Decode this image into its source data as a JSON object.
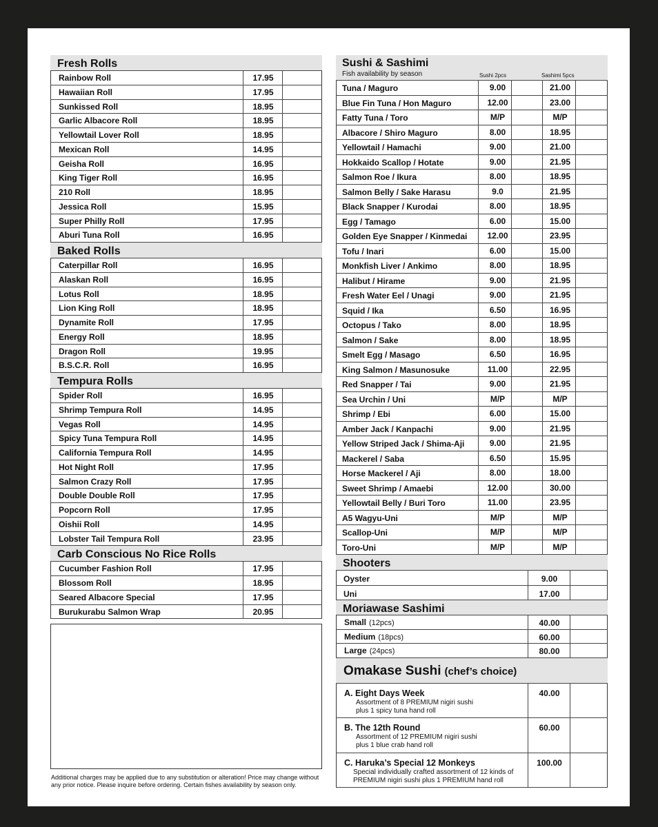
{
  "left": {
    "sections": [
      {
        "title": "Fresh Rolls",
        "rows": [
          [
            "Rainbow Roll",
            "17.95"
          ],
          [
            "Hawaiian Roll",
            "17.95"
          ],
          [
            "Sunkissed Roll",
            "18.95"
          ],
          [
            "Garlic Albacore Roll",
            "18.95"
          ],
          [
            "Yellowtail Lover Roll",
            "18.95"
          ],
          [
            "Mexican Roll",
            "14.95"
          ],
          [
            "Geisha Roll",
            "16.95"
          ],
          [
            "King Tiger Roll",
            "16.95"
          ],
          [
            "210 Roll",
            "18.95"
          ],
          [
            "Jessica Roll",
            "15.95"
          ],
          [
            "Super Philly Roll",
            "17.95"
          ],
          [
            "Aburi Tuna Roll",
            "16.95"
          ]
        ]
      },
      {
        "title": "Baked Rolls",
        "rows": [
          [
            "Caterpillar Roll",
            "16.95"
          ],
          [
            "Alaskan Roll",
            "16.95"
          ],
          [
            "Lotus Roll",
            "18.95"
          ],
          [
            "Lion King Roll",
            "18.95"
          ],
          [
            "Dynamite Roll",
            "17.95"
          ],
          [
            "Energy Roll",
            "18.95"
          ],
          [
            "Dragon Roll",
            "19.95"
          ],
          [
            "B.S.C.R. Roll",
            "16.95"
          ]
        ]
      },
      {
        "title": "Tempura Rolls",
        "rows": [
          [
            "Spider Roll",
            "16.95"
          ],
          [
            "Shrimp Tempura Roll",
            "14.95"
          ],
          [
            "Vegas Roll",
            "14.95"
          ],
          [
            "Spicy Tuna Tempura Roll",
            "14.95"
          ],
          [
            "California Tempura Roll",
            "14.95"
          ],
          [
            "Hot Night Roll",
            "17.95"
          ],
          [
            "Salmon Crazy Roll",
            "17.95"
          ],
          [
            "Double Double Roll",
            "17.95"
          ],
          [
            "Popcorn Roll",
            "17.95"
          ],
          [
            "Oishii Roll",
            "14.95"
          ],
          [
            "Lobster Tail Tempura Roll",
            "23.95"
          ]
        ]
      },
      {
        "title": "Carb Conscious No Rice Rolls",
        "rows": [
          [
            "Cucumber Fashion Roll",
            "17.95"
          ],
          [
            "Blossom Roll",
            "18.95"
          ],
          [
            "Seared Albacore Special",
            "17.95"
          ],
          [
            "Burukurabu Salmon Wrap",
            "20.95"
          ]
        ]
      }
    ],
    "footnote": [
      "Additional charges may be applied due to any substitution or alteration! Price may change without",
      "any prior notice. Please inquire before ordering.  Certain fishes availability by season only."
    ]
  },
  "sushi": {
    "title": "Sushi & Sashimi",
    "subtitle": "Fish availability by season",
    "col1": "Sushi 2pcs",
    "col2": "Sashimi 5pcs",
    "rows": [
      [
        "Tuna / Maguro",
        "9.00",
        "21.00"
      ],
      [
        "Blue Fin Tuna / Hon Maguro",
        "12.00",
        "23.00"
      ],
      [
        "Fatty Tuna / Toro",
        "M/P",
        "M/P"
      ],
      [
        "Albacore / Shiro Maguro",
        "8.00",
        "18.95"
      ],
      [
        "Yellowtail / Hamachi",
        "9.00",
        "21.00"
      ],
      [
        "Hokkaido Scallop / Hotate",
        "9.00",
        "21.95"
      ],
      [
        "Salmon Roe / Ikura",
        "8.00",
        "18.95"
      ],
      [
        "Salmon Belly / Sake Harasu",
        "9.0",
        "21.95"
      ],
      [
        "Black Snapper / Kurodai",
        "8.00",
        "18.95"
      ],
      [
        "Egg / Tamago",
        "6.00",
        "15.00"
      ],
      [
        "Golden Eye Snapper / Kinmedai",
        "12.00",
        "23.95"
      ],
      [
        "Tofu / Inari",
        "6.00",
        "15.00"
      ],
      [
        "Monkfish Liver / Ankimo",
        "8.00",
        "18.95"
      ],
      [
        "Halibut / Hirame",
        "9.00",
        "21.95"
      ],
      [
        "Fresh Water Eel / Unagi",
        "9.00",
        "21.95"
      ],
      [
        "Squid / Ika",
        "6.50",
        "16.95"
      ],
      [
        "Octopus / Tako",
        "8.00",
        "18.95"
      ],
      [
        "Salmon / Sake",
        "8.00",
        "18.95"
      ],
      [
        "Smelt Egg / Masago",
        "6.50",
        "16.95"
      ],
      [
        "King Salmon / Masunosuke",
        "11.00",
        "22.95"
      ],
      [
        "Red Snapper / Tai",
        "9.00",
        "21.95"
      ],
      [
        "Sea Urchin / Uni",
        "M/P",
        "M/P"
      ],
      [
        "Shrimp / Ebi",
        "6.00",
        "15.00"
      ],
      [
        "Amber Jack / Kanpachi",
        "9.00",
        "21.95"
      ],
      [
        "Yellow Striped Jack / Shima-Aji",
        "9.00",
        "21.95"
      ],
      [
        "Mackerel / Saba",
        "6.50",
        "15.95"
      ],
      [
        "Horse Mackerel / Aji",
        "8.00",
        "18.00"
      ],
      [
        "Sweet Shrimp / Amaebi",
        "12.00",
        "30.00"
      ],
      [
        "Yellowtail Belly / Buri Toro",
        "11.00",
        "23.95"
      ],
      [
        "A5 Wagyu-Uni",
        "M/P",
        "M/P"
      ],
      [
        "Scallop-Uni",
        "M/P",
        "M/P"
      ],
      [
        "Toro-Uni",
        "M/P",
        "M/P"
      ]
    ]
  },
  "shooters": {
    "title": "Shooters",
    "rows": [
      [
        "Oyster",
        "9.00"
      ],
      [
        "Uni",
        "17.00"
      ]
    ]
  },
  "moriawase": {
    "title": "Moriawase Sashimi",
    "rows": [
      [
        "Small",
        "(12pcs)",
        "40.00"
      ],
      [
        "Medium",
        "(18pcs)",
        "60.00"
      ],
      [
        "Large",
        "(24pcs)",
        "80.00"
      ]
    ]
  },
  "omakase": {
    "title": "Omakase Sushi",
    "note": "(chef’s choice)",
    "items": [
      {
        "name": "A. Eight Days Week",
        "price": "40.00",
        "desc": [
          "Assortment of 8 PREMIUM nigiri sushi",
          "plus 1 spicy tuna hand roll"
        ]
      },
      {
        "name": "B. The 12th Round",
        "price": "60.00",
        "desc": [
          "Assortment of 12 PREMIUM nigiri sushi",
          "plus 1 blue crab hand roll"
        ]
      },
      {
        "name": "C. Haruka’s Special 12 Monkeys",
        "price": "100.00",
        "desc": [
          "Special individually crafted assortment of 12 kinds of",
          "PREMIUM nigiri sushi plus 1 PREMIUM hand roll"
        ]
      }
    ]
  }
}
